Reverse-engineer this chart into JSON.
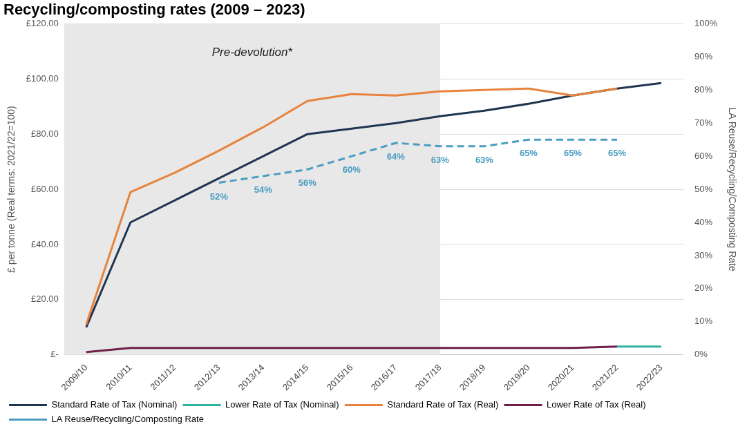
{
  "chart_data": {
    "type": "line",
    "title": "Recycling/composting rates (2009 – 2023)",
    "ylabel": "£ per tonne (Real terms: 2021/22=100)",
    "y2label": "LA Reuse/Recycling/Composting Rate",
    "categories": [
      "2009/10",
      "2010/11",
      "2011/12",
      "2012/13",
      "2013/14",
      "2014/15",
      "2015/16",
      "2016/17",
      "2017/18",
      "2018/19",
      "2019/20",
      "2020/21",
      "2021/22",
      "2022/23"
    ],
    "series": [
      {
        "name": "Standard Rate of Tax (Nominal)",
        "color": "#1f3550",
        "values": [
          10,
          48,
          56,
          64,
          72,
          80,
          82,
          84,
          86.5,
          88.5,
          91,
          94,
          96.5,
          98.5
        ]
      },
      {
        "name": "Lower Rate of Tax (Nominal)",
        "color": "#2bb3a0",
        "values": [
          null,
          null,
          null,
          null,
          null,
          null,
          null,
          null,
          null,
          null,
          null,
          null,
          3,
          3
        ]
      },
      {
        "name": "Standard Rate of Tax (Real)",
        "color": "#e8823c",
        "values": [
          11,
          59,
          66,
          74,
          82.5,
          92,
          94.5,
          94,
          95.5,
          96,
          96.5,
          94,
          96.5,
          null
        ]
      },
      {
        "name": "Lower Rate of Tax (Real)",
        "color": "#6e1f4a",
        "values": [
          1,
          2.5,
          2.5,
          2.5,
          2.5,
          2.5,
          2.5,
          2.5,
          2.5,
          2.5,
          2.5,
          2.5,
          3,
          null
        ]
      },
      {
        "name": "LA Reuse/Recycling/Composting Rate",
        "color": "#4a9cc0",
        "axis": "y2",
        "line_style": "dashed",
        "values": [
          null,
          null,
          null,
          52,
          54,
          56,
          60,
          64,
          63,
          63,
          65,
          65,
          65,
          null
        ],
        "value_labels": [
          null,
          null,
          null,
          "52%",
          "54%",
          "56%",
          "60%",
          "64%",
          "63%",
          "63%",
          "65%",
          "65%",
          "65%",
          null
        ]
      }
    ],
    "ylim": [
      0,
      120
    ],
    "yticks": [
      {
        "value": 0,
        "label": "£-"
      },
      {
        "value": 20,
        "label": "£20.00"
      },
      {
        "value": 40,
        "label": "£40.00"
      },
      {
        "value": 60,
        "label": "£60.00"
      },
      {
        "value": 80,
        "label": "£80.00"
      },
      {
        "value": 100,
        "label": "£100.00"
      },
      {
        "value": 120,
        "label": "£120.00"
      }
    ],
    "y2lim": [
      0,
      100
    ],
    "y2ticks": [
      {
        "value": 0,
        "label": "0%"
      },
      {
        "value": 10,
        "label": "10%"
      },
      {
        "value": 20,
        "label": "20%"
      },
      {
        "value": 30,
        "label": "30%"
      },
      {
        "value": 40,
        "label": "40%"
      },
      {
        "value": 50,
        "label": "50%"
      },
      {
        "value": 60,
        "label": "60%"
      },
      {
        "value": 70,
        "label": "70%"
      },
      {
        "value": 80,
        "label": "80%"
      },
      {
        "value": 90,
        "label": "90%"
      },
      {
        "value": 100,
        "label": "100%"
      }
    ],
    "bands": [
      {
        "axis": "x",
        "from": "2009/10",
        "to": "2017/18",
        "label": "Pre-devolution*",
        "color": "#e8e8e8"
      }
    ],
    "grid": "y",
    "legend": "bottom",
    "marker": "none",
    "line_style": "solid"
  }
}
